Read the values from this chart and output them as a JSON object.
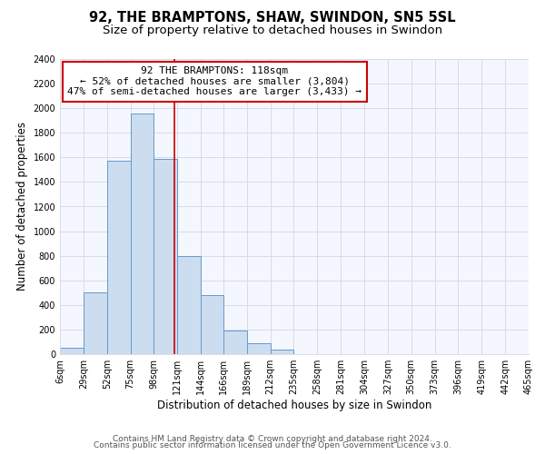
{
  "title": "92, THE BRAMPTONS, SHAW, SWINDON, SN5 5SL",
  "subtitle": "Size of property relative to detached houses in Swindon",
  "xlabel": "Distribution of detached houses by size in Swindon",
  "ylabel": "Number of detached properties",
  "bar_edges": [
    6,
    29,
    52,
    75,
    98,
    121,
    144,
    166,
    189,
    212,
    235,
    258,
    281,
    304,
    327,
    350,
    373,
    396,
    419,
    442,
    465
  ],
  "bar_heights": [
    55,
    500,
    1575,
    1960,
    1590,
    800,
    480,
    190,
    90,
    35,
    0,
    0,
    0,
    0,
    0,
    0,
    0,
    0,
    0,
    0
  ],
  "bar_color": "#ccddf0",
  "bar_edgecolor": "#6699cc",
  "vline_x": 118,
  "vline_color": "#cc0000",
  "annotation_title": "92 THE BRAMPTONS: 118sqm",
  "annotation_line1": "← 52% of detached houses are smaller (3,804)",
  "annotation_line2": "47% of semi-detached houses are larger (3,433) →",
  "annotation_box_color": "white",
  "annotation_box_edgecolor": "#cc0000",
  "tick_labels": [
    "6sqm",
    "29sqm",
    "52sqm",
    "75sqm",
    "98sqm",
    "121sqm",
    "144sqm",
    "166sqm",
    "189sqm",
    "212sqm",
    "235sqm",
    "258sqm",
    "281sqm",
    "304sqm",
    "327sqm",
    "350sqm",
    "373sqm",
    "396sqm",
    "419sqm",
    "442sqm",
    "465sqm"
  ],
  "ylim": [
    0,
    2400
  ],
  "yticks": [
    0,
    200,
    400,
    600,
    800,
    1000,
    1200,
    1400,
    1600,
    1800,
    2000,
    2200,
    2400
  ],
  "footer_line1": "Contains HM Land Registry data © Crown copyright and database right 2024.",
  "footer_line2": "Contains public sector information licensed under the Open Government Licence v3.0.",
  "bg_color": "#ffffff",
  "plot_bg_color": "#f5f7ff",
  "grid_color": "#d8dce8",
  "title_fontsize": 10.5,
  "subtitle_fontsize": 9.5,
  "axis_label_fontsize": 8.5,
  "tick_fontsize": 7,
  "footer_fontsize": 6.5
}
